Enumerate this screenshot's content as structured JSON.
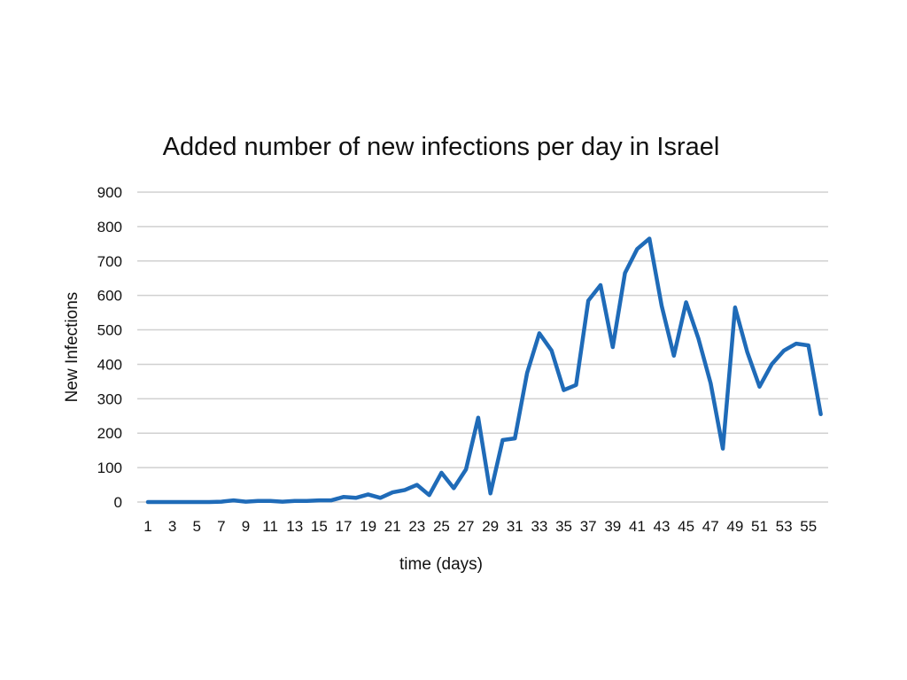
{
  "chart_data": {
    "type": "line",
    "title": "Added number of new infections per day in Israel",
    "xlabel": "time (days)",
    "ylabel": "New Infections",
    "ylim": [
      0,
      900
    ],
    "yticks": [
      0,
      100,
      200,
      300,
      400,
      500,
      600,
      700,
      800,
      900
    ],
    "xticks": [
      1,
      3,
      5,
      7,
      9,
      11,
      13,
      15,
      17,
      19,
      21,
      23,
      25,
      27,
      29,
      31,
      33,
      35,
      37,
      39,
      41,
      43,
      45,
      47,
      49,
      51,
      53,
      55
    ],
    "grid": true,
    "color": "#1f6bb8",
    "series": [
      {
        "name": "New Infections",
        "x": [
          1,
          2,
          3,
          4,
          5,
          6,
          7,
          8,
          9,
          10,
          11,
          12,
          13,
          14,
          15,
          16,
          17,
          18,
          19,
          20,
          21,
          22,
          23,
          24,
          25,
          26,
          27,
          28,
          29,
          30,
          31,
          32,
          33,
          34,
          35,
          36,
          37,
          38,
          39,
          40,
          41,
          42,
          43,
          44,
          45,
          46,
          47,
          48,
          49,
          50,
          51,
          52,
          53,
          54,
          55,
          56
        ],
        "values": [
          0,
          0,
          0,
          0,
          0,
          0,
          1,
          5,
          1,
          3,
          3,
          1,
          3,
          3,
          5,
          5,
          15,
          12,
          22,
          12,
          28,
          35,
          50,
          20,
          85,
          40,
          95,
          245,
          25,
          180,
          185,
          375,
          490,
          440,
          325,
          340,
          585,
          630,
          450,
          665,
          735,
          765,
          570,
          425,
          580,
          475,
          345,
          155,
          565,
          435,
          335,
          400,
          440,
          460,
          455,
          255
        ]
      }
    ]
  }
}
